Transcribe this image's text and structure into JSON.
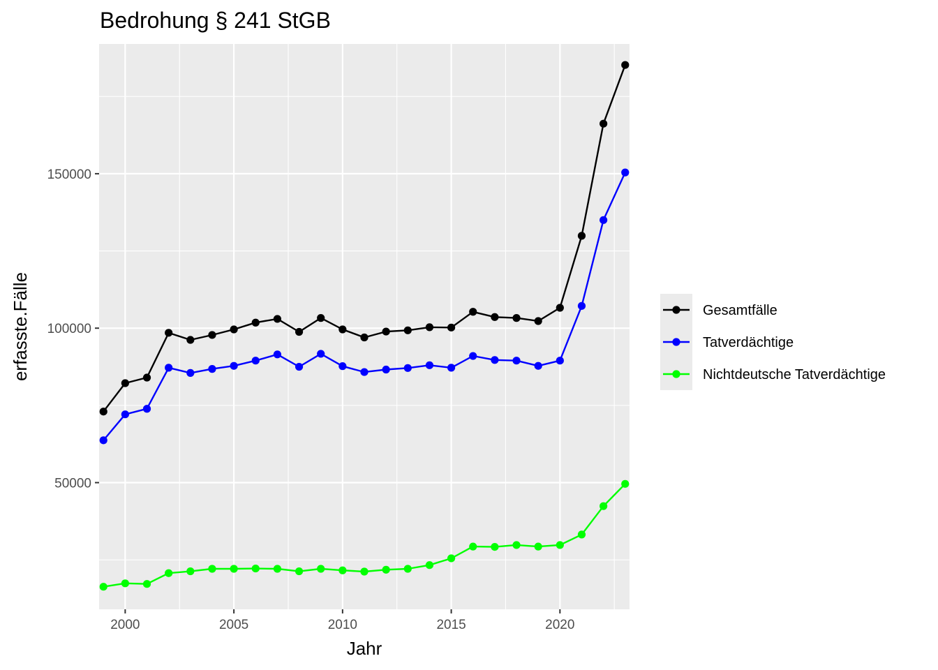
{
  "chart_data": {
    "type": "line",
    "title": "Bedrohung § 241 StGB",
    "xlabel": "Jahr",
    "ylabel": "erfasste.Fälle",
    "xlim": [
      1998.8,
      2023.2
    ],
    "ylim": [
      9000,
      192000
    ],
    "x_ticks": [
      2000,
      2005,
      2010,
      2015,
      2020
    ],
    "y_ticks": [
      50000,
      100000,
      150000
    ],
    "grid": true,
    "legend_position": "right",
    "x": [
      1999,
      2000,
      2001,
      2002,
      2003,
      2004,
      2005,
      2006,
      2007,
      2008,
      2009,
      2010,
      2011,
      2012,
      2013,
      2014,
      2015,
      2016,
      2017,
      2018,
      2019,
      2020,
      2021,
      2022,
      2023
    ],
    "series": [
      {
        "name": "Gesamtfälle",
        "color": "#000000",
        "values": [
          73000,
          82200,
          84000,
          98500,
          96200,
          97800,
          99600,
          101800,
          103000,
          98800,
          103300,
          99600,
          97000,
          98900,
          99300,
          100300,
          100200,
          105300,
          103600,
          103300,
          102300,
          106600,
          129900,
          166200,
          185200
        ]
      },
      {
        "name": "Tatverdächtige",
        "color": "#0000ff",
        "values": [
          63700,
          72100,
          73900,
          87200,
          85500,
          86800,
          87800,
          89500,
          91500,
          87500,
          91700,
          87700,
          85800,
          86600,
          87100,
          88000,
          87200,
          91000,
          89700,
          89500,
          87800,
          89500,
          107200,
          135000,
          150400
        ]
      },
      {
        "name": "Nichtdeutsche Tatverdächtige",
        "color": "#00ff00",
        "values": [
          16300,
          17400,
          17200,
          20700,
          21300,
          22100,
          22100,
          22200,
          22100,
          21300,
          22100,
          21600,
          21200,
          21800,
          22100,
          23300,
          25500,
          29300,
          29200,
          29800,
          29300,
          29800,
          33200,
          42400,
          49600
        ]
      }
    ]
  }
}
